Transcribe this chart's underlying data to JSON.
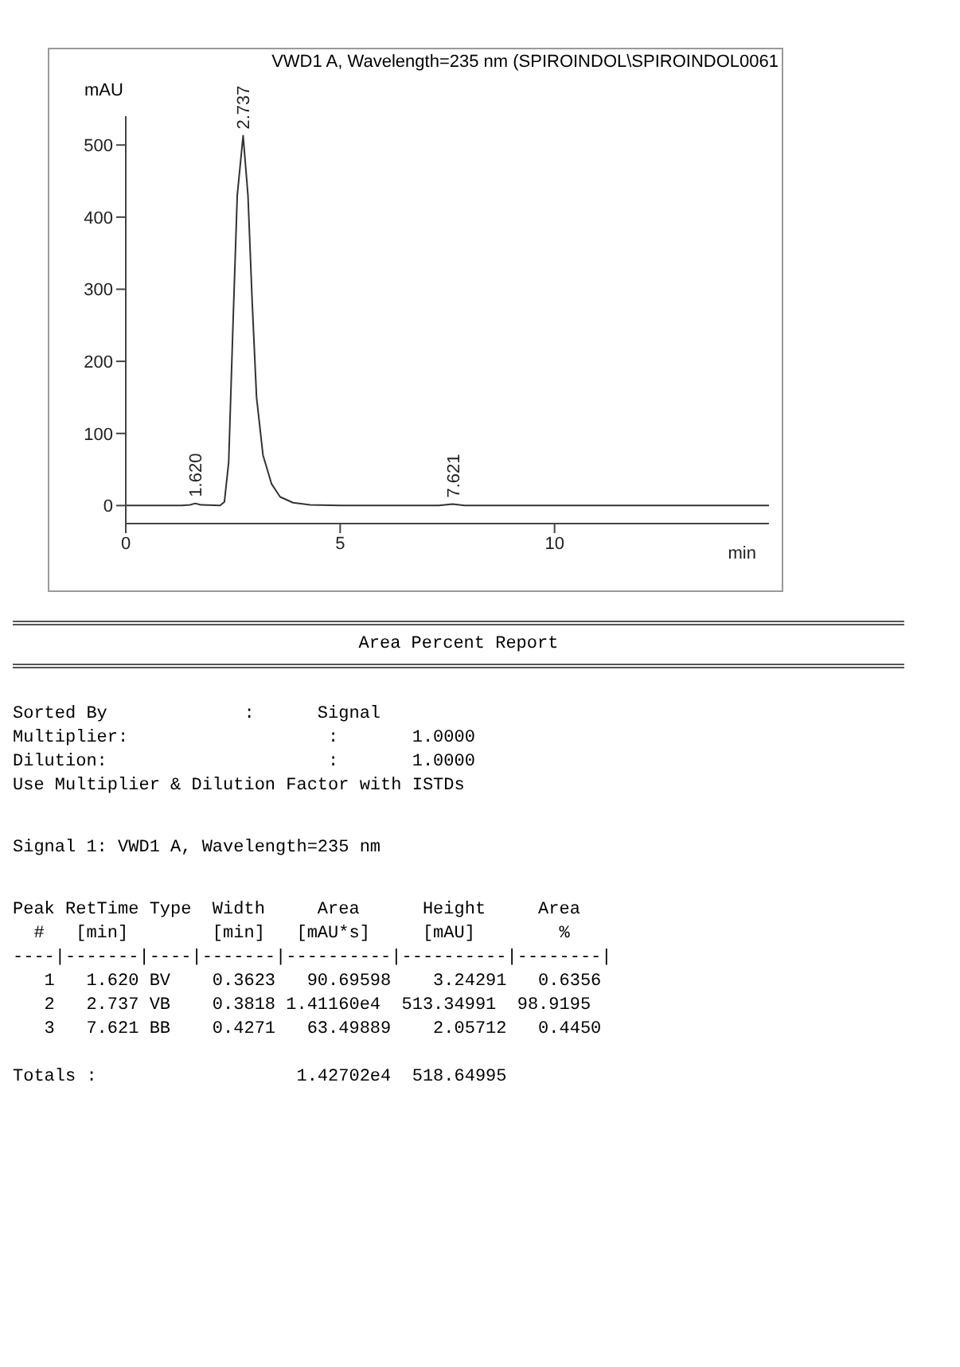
{
  "chart_data": {
    "type": "line",
    "title": "VWD1 A, Wavelength=235 nm (SPIROINDOL\\SPIROINDOL0061",
    "xlabel": "min",
    "ylabel": "mAU",
    "x": [
      0,
      1.3,
      1.5,
      1.62,
      1.75,
      2.2,
      2.3,
      2.4,
      2.5,
      2.6,
      2.737,
      2.85,
      2.95,
      3.05,
      3.2,
      3.4,
      3.6,
      3.9,
      4.3,
      5,
      7.3,
      7.621,
      7.9,
      15
    ],
    "series": [
      {
        "color": "#333333",
        "values": [
          0,
          0,
          1,
          3,
          1,
          0,
          5,
          60,
          250,
          430,
          513,
          430,
          280,
          150,
          70,
          30,
          12,
          4,
          1,
          0,
          0,
          2,
          0,
          0
        ]
      }
    ],
    "xlim": [
      0,
      15
    ],
    "xticks": [
      0,
      5,
      10
    ],
    "ylim": [
      -25,
      540
    ],
    "yticks": [
      0,
      100,
      200,
      300,
      400,
      500
    ],
    "grid": false,
    "legend": false,
    "marker": "none",
    "line_style": "solid",
    "annotations": [
      {
        "text": "1.620",
        "x": 1.62,
        "y": 3
      },
      {
        "text": "2.737",
        "x": 2.737,
        "y": 513
      },
      {
        "text": "7.621",
        "x": 7.621,
        "y": 2
      },
      "Area Percent Report",
      "Sorted By             :      Signal",
      "Multiplier:                   :       1.0000",
      "Dilution:                     :       1.0000",
      "Use Multiplier & Dilution Factor with ISTDs",
      "Signal 1: VWD1 A, Wavelength=235 nm",
      "Peak RetTime Type  Width     Area      Height     Area",
      "  #   [min]        [min]   [mAU*s]     [mAU]        %",
      "----|-------|----|-------|----------|----------|--------|",
      "   1   1.620 BV    0.3623   90.69598    3.24291   0.6356",
      "   2   2.737 VB    0.3818 1.41160e4  513.34991  98.9195",
      "   3   7.621 BB    0.4271   63.49889    2.05712   0.4450",
      "Totals :                   1.42702e4  518.64995"
    ]
  }
}
